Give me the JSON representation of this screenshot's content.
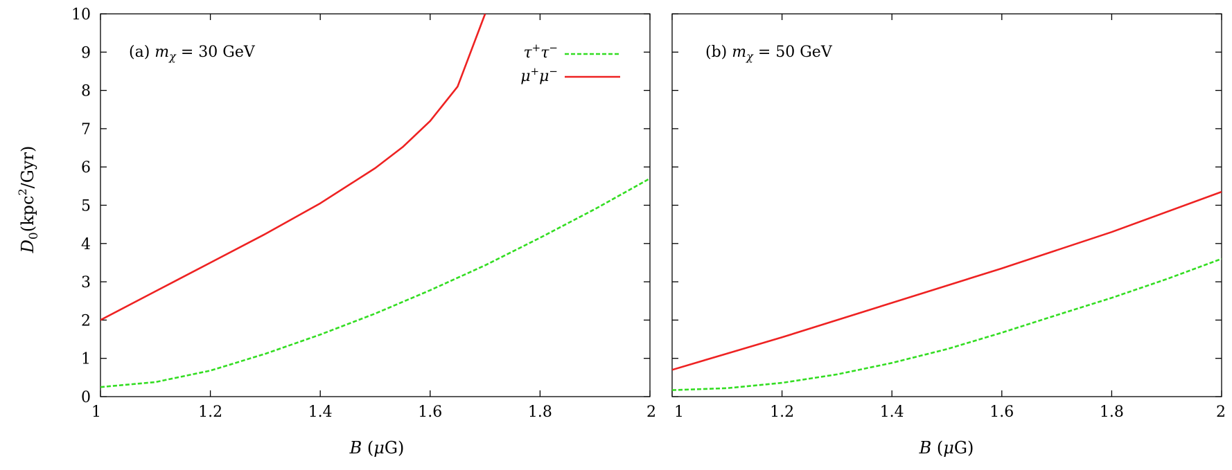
{
  "figure": {
    "ylabel": "D_0(kpc^2/Gyr)"
  },
  "colors": {
    "tau": "#33dd22",
    "mu": "#ee2222"
  },
  "chart_data": [
    {
      "type": "line",
      "panel_label": "(a) m_χ = 30 GeV",
      "xlabel": "B (μG)",
      "ylabel": "D_0(kpc^2/Gyr)",
      "xlim": [
        1,
        2
      ],
      "ylim": [
        0,
        10
      ],
      "xticks": [
        "1",
        "1.2",
        "1.4",
        "1.6",
        "1.8",
        "2"
      ],
      "yticks": [
        "0",
        "1",
        "2",
        "3",
        "4",
        "5",
        "6",
        "7",
        "8",
        "9",
        "10"
      ],
      "legend": {
        "position": "top-right",
        "entries": [
          "τ+τ−",
          "μ+μ−"
        ]
      },
      "series": [
        {
          "name": "τ+τ−",
          "style": "dashed",
          "color": "#33dd22",
          "x": [
            1.0,
            1.1,
            1.2,
            1.3,
            1.4,
            1.5,
            1.6,
            1.7,
            1.8,
            1.9,
            2.0
          ],
          "y": [
            0.25,
            0.38,
            0.68,
            1.12,
            1.62,
            2.17,
            2.78,
            3.43,
            4.15,
            4.9,
            5.7
          ]
        },
        {
          "name": "μ+μ−",
          "style": "solid",
          "color": "#ee2222",
          "x": [
            1.0,
            1.1,
            1.2,
            1.3,
            1.4,
            1.5,
            1.55,
            1.6,
            1.65,
            1.7
          ],
          "y": [
            2.0,
            2.75,
            3.5,
            4.25,
            5.05,
            5.97,
            6.52,
            7.2,
            8.1,
            10.0
          ]
        }
      ]
    },
    {
      "type": "line",
      "panel_label": "(b) m_χ = 50 GeV",
      "xlabel": "B (μG)",
      "xlim": [
        1,
        2
      ],
      "ylim": [
        0,
        10
      ],
      "xticks": [
        "1",
        "1.2",
        "1.4",
        "1.6",
        "1.8",
        "2"
      ],
      "series": [
        {
          "name": "τ+τ−",
          "style": "dashed",
          "color": "#33dd22",
          "x": [
            1.0,
            1.1,
            1.2,
            1.3,
            1.4,
            1.5,
            1.6,
            1.7,
            1.8,
            1.9,
            2.0
          ],
          "y": [
            0.17,
            0.22,
            0.36,
            0.58,
            0.88,
            1.24,
            1.67,
            2.13,
            2.58,
            3.07,
            3.6
          ]
        },
        {
          "name": "μ+μ−",
          "style": "solid",
          "color": "#ee2222",
          "x": [
            1.0,
            1.2,
            1.4,
            1.6,
            1.8,
            2.0
          ],
          "y": [
            0.7,
            1.55,
            2.45,
            3.35,
            4.3,
            5.35
          ]
        }
      ]
    }
  ]
}
